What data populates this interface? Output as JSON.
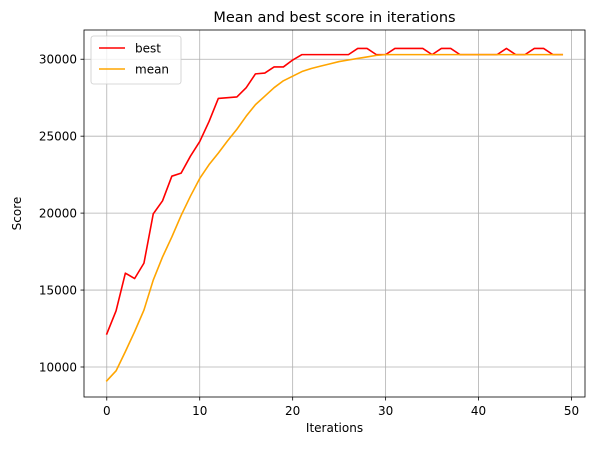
{
  "chart_data": {
    "type": "line",
    "title": "Mean and best score in iterations",
    "xlabel": "Iterations",
    "ylabel": "Score",
    "xlim": [
      -2.45,
      51.45
    ],
    "ylim": [
      8050,
      31900
    ],
    "xticks": [
      0,
      10,
      20,
      30,
      40,
      50
    ],
    "yticks": [
      10000,
      15000,
      20000,
      25000,
      30000
    ],
    "grid": true,
    "legend_position": "top-left",
    "x": [
      0,
      1,
      2,
      3,
      4,
      5,
      6,
      7,
      8,
      9,
      10,
      11,
      12,
      13,
      14,
      15,
      16,
      17,
      18,
      19,
      20,
      21,
      22,
      23,
      24,
      25,
      26,
      27,
      28,
      29,
      30,
      31,
      32,
      33,
      34,
      35,
      36,
      37,
      38,
      39,
      40,
      41,
      42,
      43,
      44,
      45,
      46,
      47,
      48,
      49
    ],
    "series": [
      {
        "name": "best",
        "color": "#ff0000",
        "values": [
          12150,
          13650,
          16100,
          15750,
          16750,
          19950,
          20800,
          22400,
          22600,
          23700,
          24650,
          25950,
          27450,
          27500,
          27550,
          28150,
          29050,
          29100,
          29500,
          29500,
          29950,
          30300,
          30300,
          30300,
          30300,
          30300,
          30300,
          30700,
          30700,
          30300,
          30300,
          30700,
          30700,
          30700,
          30700,
          30300,
          30700,
          30700,
          30300,
          30300,
          30300,
          30300,
          30300,
          30700,
          30300,
          30300,
          30700,
          30700,
          30300,
          30300
        ]
      },
      {
        "name": "mean",
        "color": "#ffa500",
        "values": [
          9100,
          9750,
          11000,
          12300,
          13700,
          15650,
          17150,
          18450,
          19850,
          21100,
          22250,
          23150,
          23900,
          24700,
          25450,
          26300,
          27050,
          27600,
          28150,
          28600,
          28900,
          29200,
          29400,
          29550,
          29700,
          29850,
          29950,
          30050,
          30150,
          30250,
          30300,
          30300,
          30300,
          30300,
          30300,
          30300,
          30300,
          30300,
          30300,
          30300,
          30300,
          30300,
          30300,
          30300,
          30300,
          30300,
          30300,
          30300,
          30300,
          30300
        ]
      }
    ]
  }
}
